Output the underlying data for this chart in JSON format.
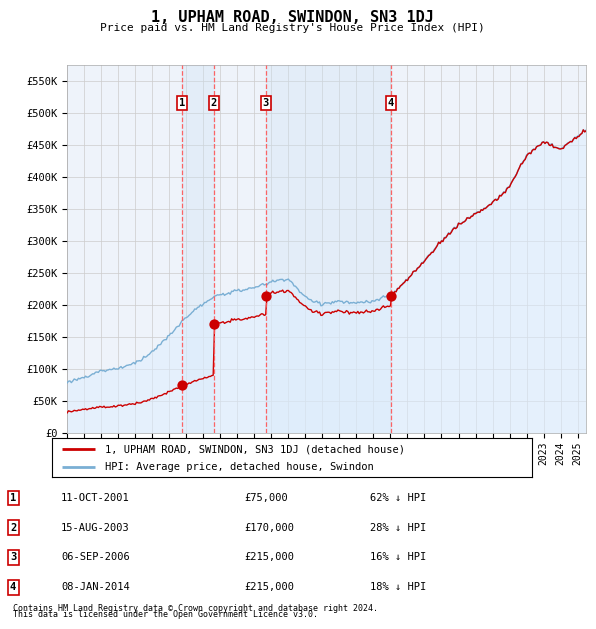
{
  "title": "1, UPHAM ROAD, SWINDON, SN3 1DJ",
  "subtitle": "Price paid vs. HM Land Registry's House Price Index (HPI)",
  "hpi_label": "HPI: Average price, detached house, Swindon",
  "property_label": "1, UPHAM ROAD, SWINDON, SN3 1DJ (detached house)",
  "footer1": "Contains HM Land Registry data © Crown copyright and database right 2024.",
  "footer2": "This data is licensed under the Open Government Licence v3.0.",
  "ylim": [
    0,
    575000
  ],
  "yticks": [
    0,
    50000,
    100000,
    150000,
    200000,
    250000,
    300000,
    350000,
    400000,
    450000,
    500000,
    550000
  ],
  "ytick_labels": [
    "£0",
    "£50K",
    "£100K",
    "£150K",
    "£200K",
    "£250K",
    "£300K",
    "£350K",
    "£400K",
    "£450K",
    "£500K",
    "£550K"
  ],
  "sales": [
    {
      "date_num": 2001.78,
      "price": 75000,
      "label": "1",
      "date_str": "11-OCT-2001",
      "pct": "62% ↓ HPI"
    },
    {
      "date_num": 2003.62,
      "price": 170000,
      "label": "2",
      "date_str": "15-AUG-2003",
      "pct": "28% ↓ HPI"
    },
    {
      "date_num": 2006.68,
      "price": 215000,
      "label": "3",
      "date_str": "06-SEP-2006",
      "pct": "16% ↓ HPI"
    },
    {
      "date_num": 2014.02,
      "price": 215000,
      "label": "4",
      "date_str": "08-JAN-2014",
      "pct": "18% ↓ HPI"
    }
  ],
  "sale_color": "#cc0000",
  "hpi_color": "#7aafd4",
  "hpi_fill_color": "#ddeeff",
  "vline_color": "#ff5555",
  "box_color": "#cc0000",
  "grid_color": "#cccccc",
  "bg_color": "#ffffff",
  "plot_bg": "#eef3fa",
  "shade_color": "#d0e4f5"
}
